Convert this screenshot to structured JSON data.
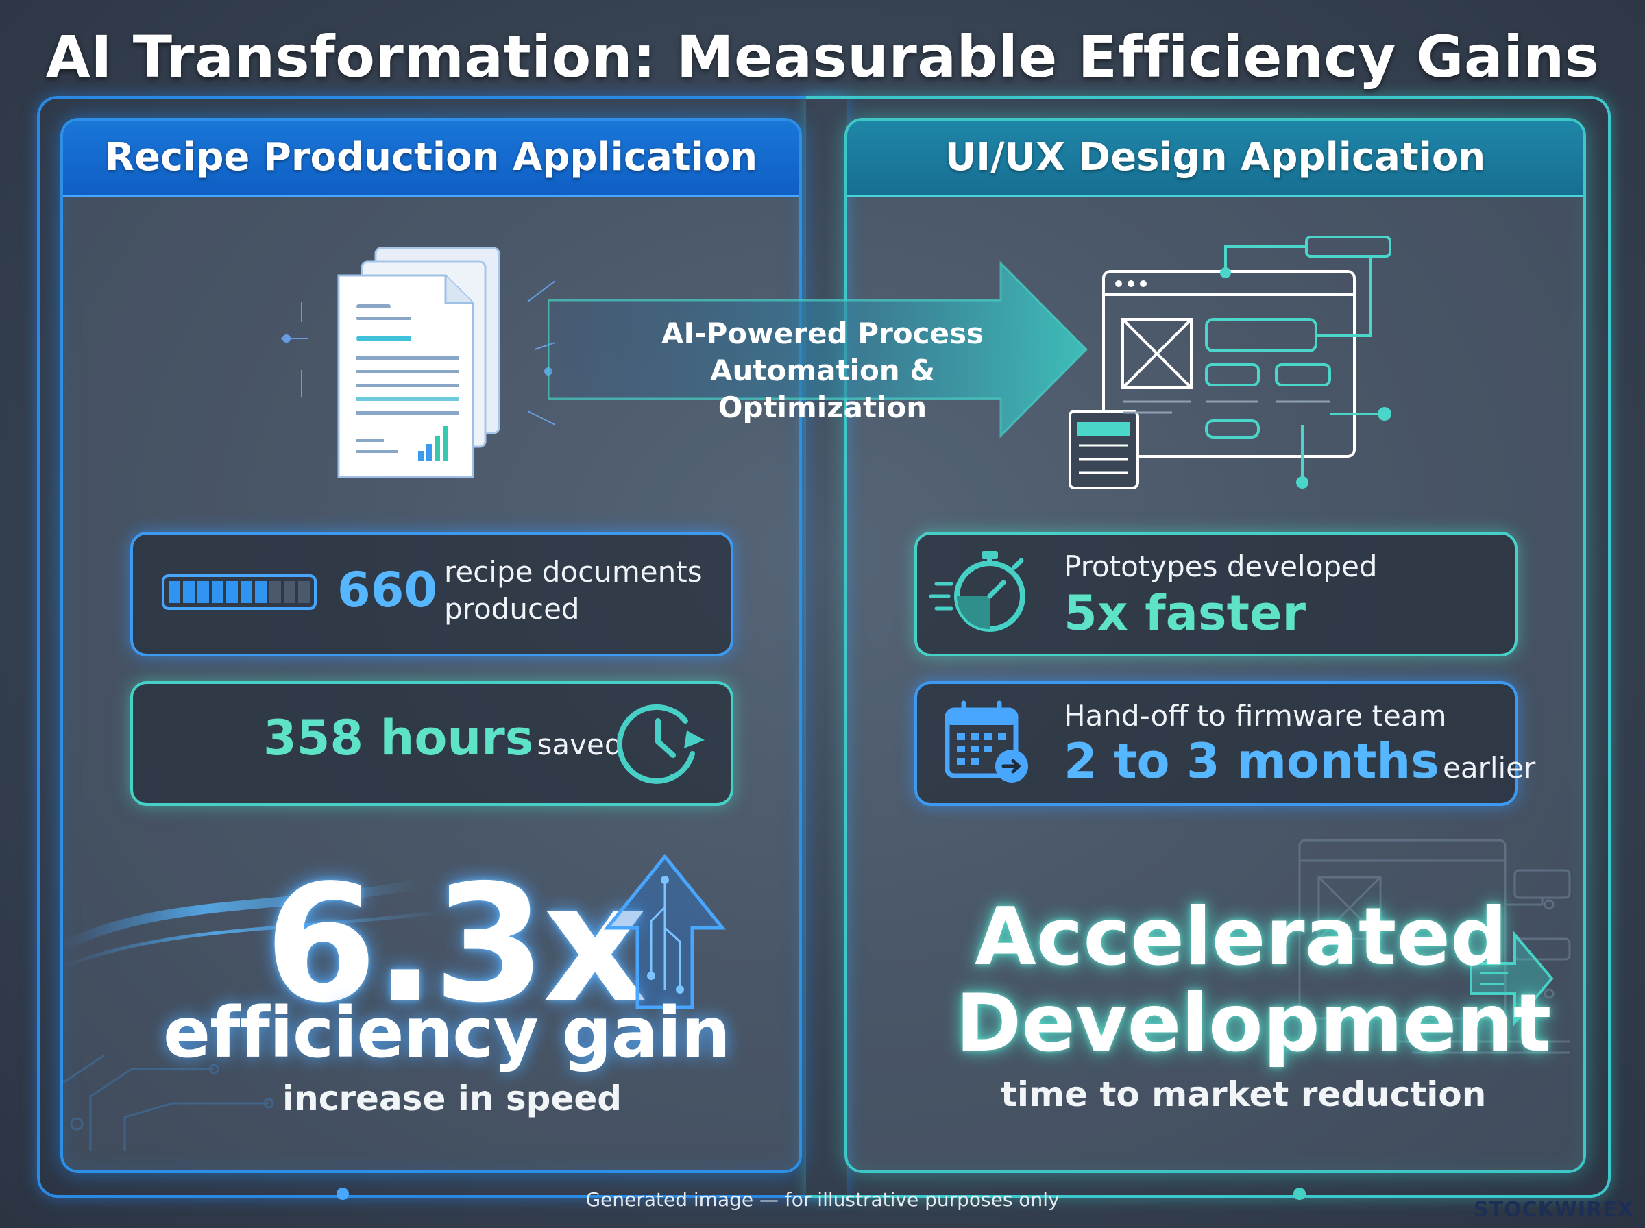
{
  "title": "AI Transformation: Measurable Efficiency Gains",
  "left_panel": {
    "header": "Recipe Production Application",
    "docs_stat": {
      "value": "660",
      "label_line1": "recipe documents",
      "label_line2": "produced",
      "bar_filled_fraction": 0.7
    },
    "hours_stat": {
      "value": "358 hours",
      "suffix": "saved"
    },
    "headline": {
      "value": "6.3x",
      "label": "efficiency gain",
      "sub": "increase in speed"
    }
  },
  "center": {
    "process_line1": "AI-Powered Process",
    "process_line2": "Automation & Optimization"
  },
  "right_panel": {
    "header": "UI/UX Design Application",
    "prototype_stat": {
      "label": "Prototypes developed",
      "value": "5x faster"
    },
    "handoff_stat": {
      "label": "Hand-off to firmware team",
      "value": "2 to 3 months",
      "suffix": "earlier"
    },
    "headline": {
      "line1": "Accelerated",
      "line2": "Development",
      "sub": "time to market reduction"
    }
  },
  "footer": {
    "note": "Generated image — for illustrative purposes only",
    "brand": "STOCKWIREX"
  },
  "icons": [
    "document-stack-icon",
    "progress-bar-icon",
    "clock-icon",
    "up-arrow-icon",
    "browser-wireframe-icon",
    "stopwatch-icon",
    "calendar-icon",
    "right-arrow-icon"
  ],
  "colors": {
    "blue_accent": "#3d9af0",
    "teal_accent": "#47d1c6",
    "blue_number": "#56b6ff",
    "teal_number": "#5ee3c8"
  }
}
